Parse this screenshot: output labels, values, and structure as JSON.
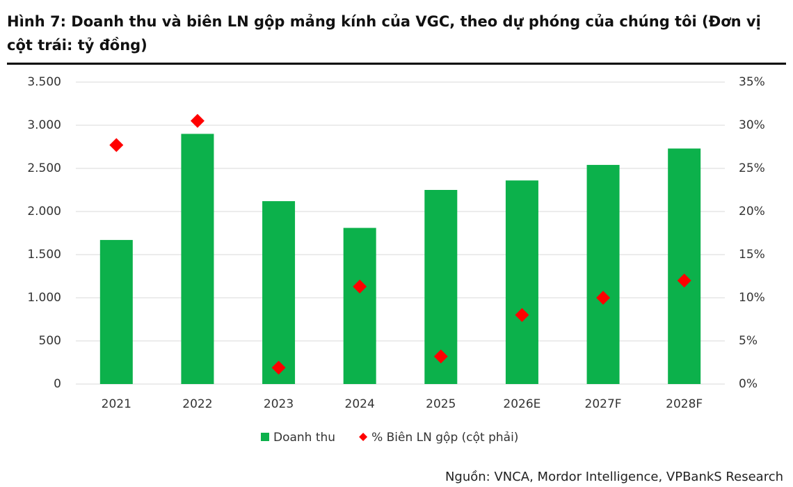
{
  "chart_data": {
    "type": "bar",
    "title": "Hình 7: Doanh thu và biên LN gộp mảng kính của VGC, theo dự phóng của chúng tôi (Đơn vị cột trái: tỷ đồng)",
    "source": "Nguồn: VNCA, Mordor Intelligence, VPBankS Research",
    "categories": [
      "2021",
      "2022",
      "2023",
      "2024",
      "2025",
      "2026E",
      "2027F",
      "2028F"
    ],
    "series": [
      {
        "name": "Doanh thu",
        "type": "bar",
        "color": "#0cb14b",
        "values": [
          1670,
          2900,
          2120,
          1810,
          2250,
          2360,
          2540,
          2730
        ]
      },
      {
        "name": "% Biên LN gộp (cột phải)",
        "type": "scatter",
        "axis": "y2",
        "color": "#ff0000",
        "values": [
          27.7,
          30.5,
          1.9,
          11.3,
          3.2,
          8.0,
          10.0,
          12.0
        ]
      }
    ],
    "ylim": [
      0,
      3500
    ],
    "yticks": [
      0,
      500,
      {
        "value": 1000,
        "label": "1.000"
      },
      {
        "value": 1500,
        "label": "1.500"
      },
      {
        "value": 2000,
        "label": "2.000"
      },
      {
        "value": 2500,
        "label": "2.500"
      },
      {
        "value": 3000,
        "label": "3.000"
      },
      {
        "value": 3500,
        "label": "3.500"
      }
    ],
    "y2lim": [
      0,
      35
    ],
    "y2ticks": [
      {
        "value": 0,
        "label": "0%"
      },
      {
        "value": 5,
        "label": "5%"
      },
      {
        "value": 10,
        "label": "10%"
      },
      {
        "value": 15,
        "label": "15%"
      },
      {
        "value": 20,
        "label": "20%"
      },
      {
        "value": 25,
        "label": "25%"
      },
      {
        "value": 30,
        "label": "30%"
      },
      {
        "value": 35,
        "label": "35%"
      }
    ],
    "grid": true,
    "legend": "bottom"
  }
}
